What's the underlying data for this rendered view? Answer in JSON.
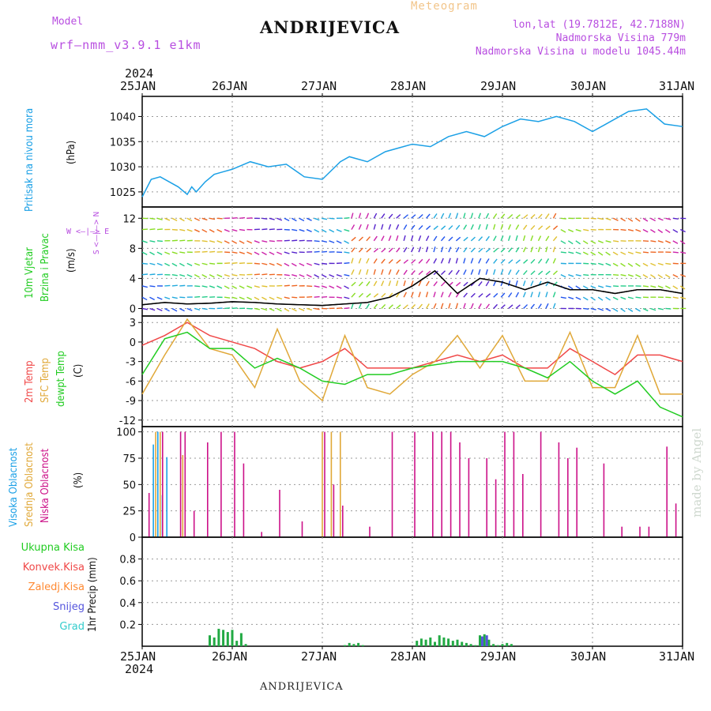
{
  "header": {
    "model_label": "Model",
    "model_name": "wrf—nmm_v3.9.1  e1km",
    "station": "ANDRIJEVICA",
    "meteogram": "Meteogram",
    "lonlat": "lon,lat (19.7812E, 42.7188N)",
    "altitude": "Nadmorska Visina 779m",
    "model_altitude": "Nadmorska Visina u modelu 1045.44m"
  },
  "footer": {
    "station": "ANDRIJEVICA",
    "watermark": "made by Angel"
  },
  "colors": {
    "pressure": "#1ba0e6",
    "temp2m": "#f04848",
    "sfctemp": "#e0a838",
    "dewpt": "#22cc22",
    "high_cloud": "#1ba0e6",
    "mid_cloud": "#e0a838",
    "low_cloud": "#cc1188",
    "total_precip": "#22aa44",
    "conv_precip": "#f04848",
    "frozen_precip": "#ff8a33",
    "snow": "#5555dd",
    "hail": "#33cccc",
    "axis_label_purple": "#b84ee0"
  },
  "time_axis": {
    "year": "2024",
    "ticks": [
      "25JAN",
      "26JAN",
      "27JAN",
      "28JAN",
      "29JAN",
      "30JAN",
      "31JAN"
    ]
  },
  "panels": {
    "pressure": {
      "label": "Pritisak na nivou mora",
      "unit": "(hPa)"
    },
    "wind": {
      "label1": "10m Vjetar",
      "label2": "Brzina i Pravac",
      "unit": "(m/s)",
      "compass": "W <—|—> E",
      "compass_ns": "S <—|—> N"
    },
    "temp": {
      "label_2m": "2m Temp",
      "label_sfc": "SFC Temp",
      "label_dew": "dewpt Temp",
      "unit": "(C)"
    },
    "cloud": {
      "label_high": "Visoka Oblacnost",
      "label_mid": "Srednja Oblacnost",
      "label_low": "Niska Oblacnost",
      "unit": "(%)"
    },
    "precip": {
      "label_total": "Ukupna Kisa",
      "label_conv": "Konvek.Kisa",
      "label_frozen": "Zaledj.Kisa",
      "label_snow": "Snijeg",
      "label_hail": "Grad",
      "unit": "1hr Precip (mm)"
    }
  },
  "chart_data": [
    {
      "type": "line",
      "name": "pressure",
      "ylim": [
        1022,
        1044
      ],
      "yticks": [
        1025,
        1030,
        1035,
        1040
      ],
      "x": [
        0,
        0.1,
        0.2,
        0.3,
        0.4,
        0.5,
        0.55,
        0.6,
        0.7,
        0.8,
        0.9,
        1.0,
        1.2,
        1.4,
        1.6,
        1.8,
        2.0,
        2.2,
        2.3,
        2.5,
        2.7,
        2.9,
        3.0,
        3.2,
        3.4,
        3.6,
        3.8,
        4.0,
        4.2,
        4.4,
        4.6,
        4.8,
        5.0,
        5.2,
        5.4,
        5.6,
        5.8,
        6.0
      ],
      "series": [
        {
          "values": [
            1024,
            1027.5,
            1028,
            1027,
            1026,
            1024.5,
            1026,
            1025,
            1027,
            1028.5,
            1029,
            1029.5,
            1031,
            1030,
            1030.5,
            1028,
            1027.5,
            1031,
            1032,
            1031,
            1033,
            1034,
            1034.5,
            1034,
            1036,
            1037,
            1036,
            1038,
            1039.5,
            1039,
            1040,
            1039,
            1037,
            1039,
            1041,
            1041.5,
            1038.5,
            1038
          ]
        }
      ]
    },
    {
      "type": "line",
      "name": "wind_speed",
      "ylim": [
        -1,
        13.5
      ],
      "yticks": [
        0,
        4,
        8,
        12
      ],
      "x": [
        0,
        0.25,
        0.5,
        0.75,
        1.0,
        1.25,
        1.5,
        1.75,
        2.0,
        2.25,
        2.5,
        2.75,
        3.0,
        3.25,
        3.5,
        3.75,
        4.0,
        4.25,
        4.5,
        4.75,
        5.0,
        5.25,
        5.5,
        5.75,
        6.0
      ],
      "series": [
        {
          "values": [
            0.5,
            0.8,
            0.6,
            0.7,
            0.9,
            0.8,
            0.6,
            0.5,
            0.4,
            0.6,
            0.8,
            1.5,
            3,
            5,
            2,
            4,
            3.5,
            2.5,
            3.5,
            2.5,
            2.5,
            2,
            2.5,
            2.5,
            2
          ]
        }
      ]
    },
    {
      "type": "line",
      "name": "temperature",
      "ylim": [
        -13,
        4
      ],
      "yticks": [
        -12,
        -9,
        -6,
        -3,
        0,
        3
      ],
      "x": [
        0,
        0.25,
        0.5,
        0.75,
        1.0,
        1.25,
        1.5,
        1.75,
        2.0,
        2.25,
        2.5,
        2.75,
        3.0,
        3.25,
        3.5,
        3.75,
        4.0,
        4.25,
        4.5,
        4.75,
        5.0,
        5.25,
        5.5,
        5.75,
        6.0
      ],
      "series": [
        {
          "name": "2m Temp",
          "values": [
            -0.5,
            1,
            3,
            1,
            0,
            -1,
            -3,
            -4,
            -3,
            -1,
            -4,
            -4,
            -4,
            -3,
            -2,
            -3,
            -2,
            -4,
            -4,
            -1,
            -3,
            -5,
            -2,
            -2,
            -3
          ]
        },
        {
          "name": "SFC Temp",
          "values": [
            -8,
            -2,
            3.5,
            -1,
            -2,
            -7,
            2,
            -6,
            -9,
            1,
            -7,
            -8,
            -5,
            -3,
            1,
            -4,
            1,
            -6,
            -6,
            1.5,
            -7,
            -7,
            1,
            -8,
            -8
          ]
        },
        {
          "name": "dewpt Temp",
          "values": [
            -5,
            0.5,
            1.5,
            -1,
            -1,
            -4,
            -2.5,
            -4,
            -6,
            -6.5,
            -5,
            -5,
            -4,
            -3.5,
            -3,
            -3,
            -3,
            -4,
            -5.5,
            -3,
            -6,
            -8,
            -6,
            -10,
            -11.5
          ]
        }
      ]
    },
    {
      "type": "bar",
      "name": "cloud_cover",
      "ylim": [
        0,
        105
      ],
      "yticks": [
        0,
        25,
        50,
        75,
        100
      ],
      "x": [
        0.05,
        0.15,
        0.2,
        0.25,
        0.3,
        0.4,
        0.45,
        0.55,
        0.7,
        0.85,
        1.0,
        1.1,
        1.3,
        1.5,
        1.75,
        2.0,
        2.1,
        2.2,
        2.5,
        2.75,
        3.0,
        3.2,
        3.3,
        3.4,
        3.5,
        3.6,
        3.8,
        3.9,
        4.0,
        4.1,
        4.2,
        4.4,
        4.6,
        4.7,
        4.8,
        5.1,
        5.3,
        5.5,
        5.6,
        5.8,
        5.9,
        6.0
      ],
      "series": [
        {
          "name": "Visoka Oblacnost",
          "values": [
            0,
            88,
            100,
            40,
            76,
            0,
            0,
            0,
            0,
            0,
            0,
            0,
            0,
            0,
            0,
            0,
            0,
            0,
            0,
            0,
            0,
            0,
            0,
            0,
            0,
            0,
            0,
            0,
            0,
            0,
            0,
            0,
            0,
            0,
            0,
            0,
            0,
            0,
            0,
            0,
            0,
            0
          ]
        },
        {
          "name": "Srednja Oblacnost",
          "values": [
            0,
            100,
            100,
            0,
            0,
            0,
            78,
            0,
            0,
            0,
            0,
            0,
            0,
            0,
            0,
            100,
            100,
            100,
            0,
            0,
            0,
            0,
            0,
            0,
            0,
            0,
            0,
            0,
            0,
            0,
            0,
            0,
            0,
            0,
            0,
            0,
            0,
            0,
            0,
            0,
            0,
            0
          ]
        },
        {
          "name": "Niska Oblacnost",
          "values": [
            42,
            0,
            100,
            0,
            0,
            100,
            100,
            25,
            90,
            100,
            100,
            70,
            5,
            45,
            15,
            100,
            50,
            30,
            10,
            100,
            100,
            100,
            100,
            100,
            90,
            75,
            75,
            55,
            100,
            100,
            60,
            100,
            90,
            75,
            85,
            70,
            10,
            10,
            10,
            86,
            32,
            0
          ]
        }
      ]
    },
    {
      "type": "bar",
      "name": "precipitation",
      "ylim": [
        0,
        1.0
      ],
      "yticks": [
        0.2,
        0.4,
        0.6,
        0.8
      ],
      "x": [
        0.75,
        0.8,
        0.85,
        0.9,
        0.95,
        1.0,
        1.05,
        1.1,
        1.15,
        2.25,
        2.3,
        2.35,
        2.4,
        2.45,
        3.05,
        3.1,
        3.15,
        3.2,
        3.25,
        3.3,
        3.35,
        3.4,
        3.45,
        3.5,
        3.55,
        3.6,
        3.65,
        3.7,
        3.75,
        3.8,
        3.85,
        3.9,
        3.95,
        4.0,
        4.05,
        4.1
      ],
      "series": [
        {
          "name": "Ukupna Kisa",
          "values": [
            0.1,
            0.08,
            0.16,
            0.15,
            0.13,
            0.15,
            0.05,
            0.12,
            0.02,
            0.01,
            0.03,
            0.02,
            0.03,
            0.01,
            0.05,
            0.07,
            0.06,
            0.08,
            0.04,
            0.1,
            0.08,
            0.07,
            0.05,
            0.06,
            0.04,
            0.03,
            0.02,
            0.01,
            0.1,
            0.11,
            0.06,
            0.02,
            0.01,
            0.02,
            0.03,
            0.02
          ]
        },
        {
          "name": "Snijeg",
          "values": [
            0,
            0,
            0,
            0,
            0,
            0,
            0,
            0,
            0,
            0,
            0,
            0,
            0,
            0,
            0,
            0,
            0,
            0,
            0,
            0,
            0,
            0,
            0,
            0,
            0,
            0,
            0,
            0,
            0.09,
            0.1,
            0,
            0,
            0,
            0,
            0,
            0
          ]
        }
      ]
    }
  ]
}
